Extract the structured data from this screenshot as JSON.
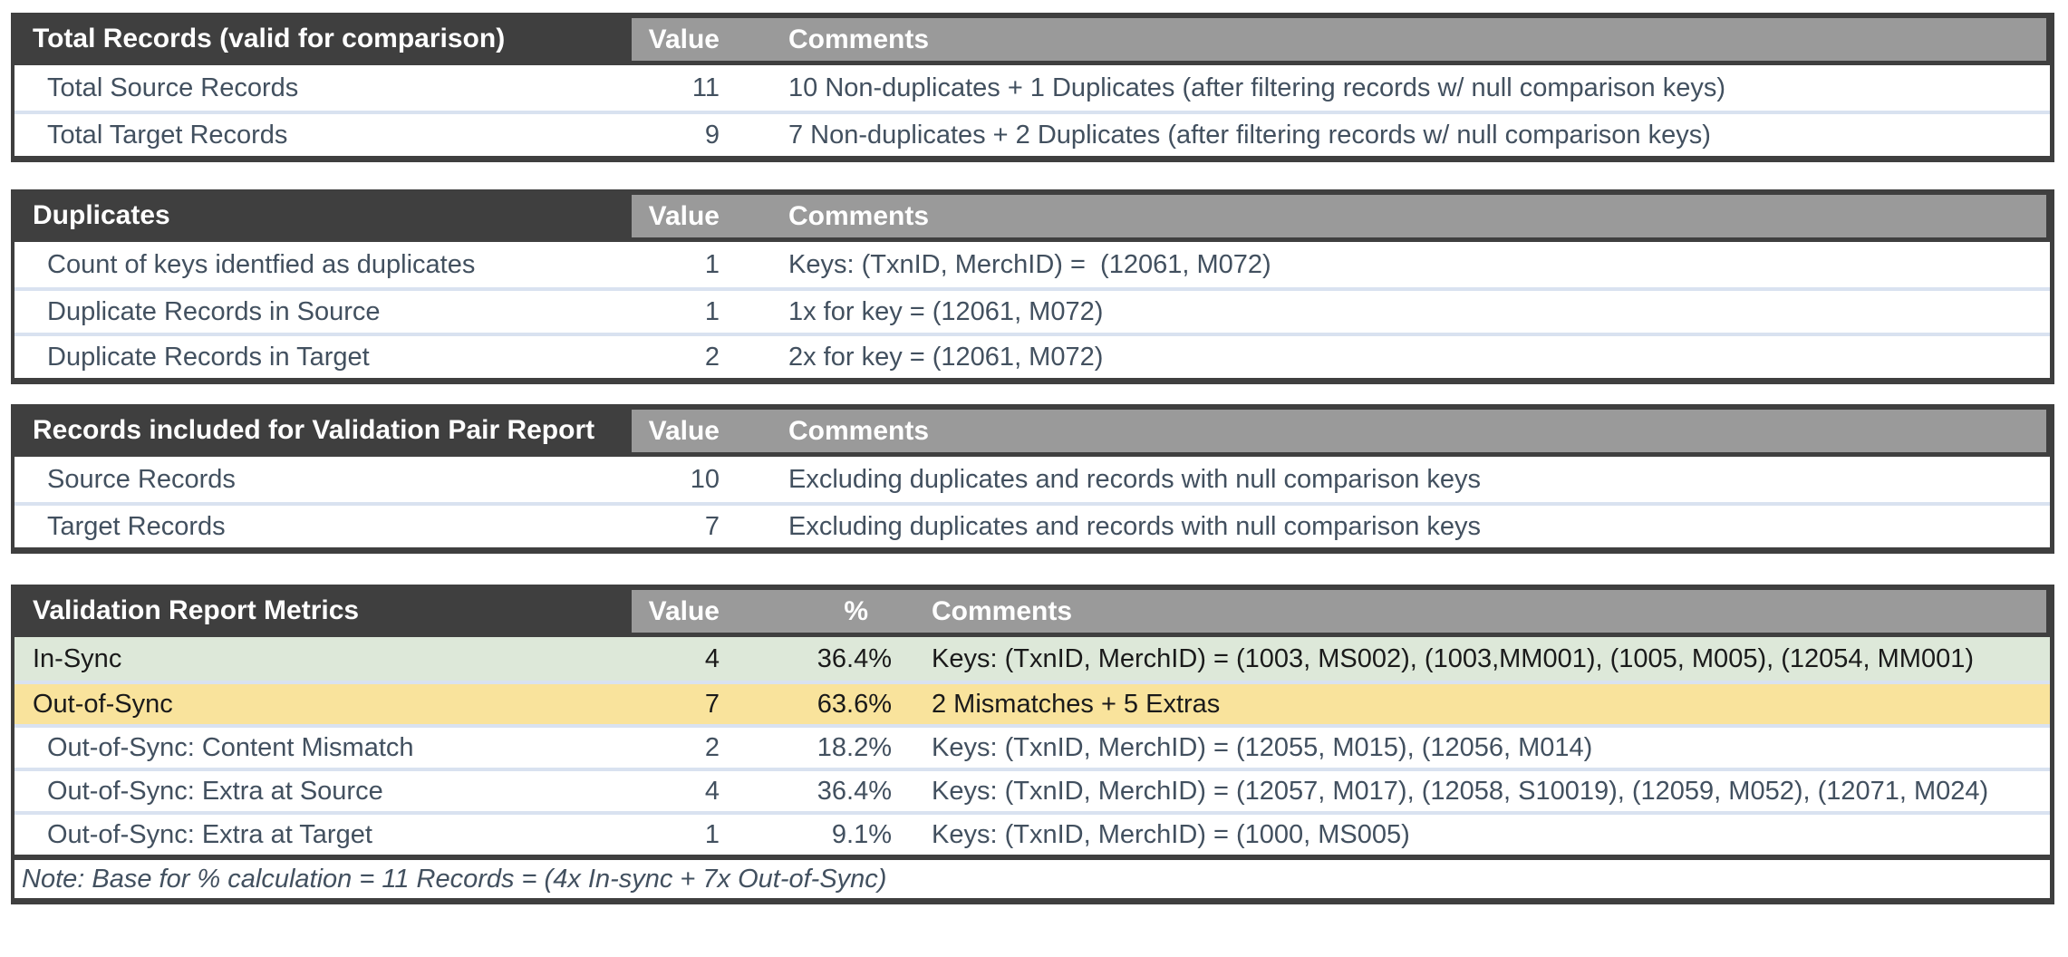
{
  "colors": {
    "header_dark": "#3f3f3f",
    "header_gray": "#9a9a9a",
    "row_separator_blue": "#d9e2f0",
    "in_sync_bg": "#dde8d9",
    "out_of_sync_bg": "#f9e39c",
    "body_text": "#42505f",
    "metric_text": "#1a1a1a",
    "header_text": "#ffffff"
  },
  "tables": [
    {
      "title": "Total Records (valid for comparison)",
      "value_label": "Value",
      "comments_label": "Comments",
      "rows": [
        {
          "label": "Total Source Records",
          "value": "11",
          "comment": "10 Non-duplicates + 1 Duplicates (after filtering records w/ null comparison keys)"
        },
        {
          "label": "Total Target Records",
          "value": "9",
          "comment": "7 Non-duplicates + 2 Duplicates (after filtering records w/ null comparison keys)"
        }
      ]
    },
    {
      "title": "Duplicates",
      "value_label": "Value",
      "comments_label": "Comments",
      "rows": [
        {
          "label": "Count of keys identfied as duplicates",
          "value": "1",
          "comment": "Keys: (TxnID, MerchID) =  (12061, M072)"
        },
        {
          "label": "Duplicate Records in Source",
          "value": "1",
          "comment": "1x for key = (12061, M072)"
        },
        {
          "label": "Duplicate Records in Target",
          "value": "2",
          "comment": "2x for key = (12061, M072)"
        }
      ]
    },
    {
      "title": "Records included for Validation Pair Report",
      "value_label": "Value",
      "comments_label": "Comments",
      "rows": [
        {
          "label": "Source Records",
          "value": "10",
          "comment": "Excluding duplicates and records with null comparison keys"
        },
        {
          "label": "Target Records",
          "value": "7",
          "comment": "Excluding duplicates and records with null comparison keys"
        }
      ]
    },
    {
      "title": "Validation Report Metrics",
      "value_label": "Value",
      "pct_label": "%",
      "comments_label": "Comments",
      "rows": [
        {
          "label": "In-Sync",
          "value": "4",
          "pct": "36.4%",
          "comment": "Keys: (TxnID, MerchID) = (1003, MS002), (1003,MM001), (1005, M005), (12054, MM001)"
        },
        {
          "label": "Out-of-Sync",
          "value": "7",
          "pct": "63.6%",
          "comment": "2 Mismatches + 5 Extras"
        },
        {
          "label": "Out-of-Sync: Content Mismatch",
          "value": "2",
          "pct": "18.2%",
          "comment": "Keys: (TxnID, MerchID) = (12055, M015), (12056, M014)"
        },
        {
          "label": "Out-of-Sync: Extra at Source",
          "value": "4",
          "pct": "36.4%",
          "comment": "Keys: (TxnID, MerchID) = (12057, M017), (12058, S10019), (12059, M052), (12071, M024)"
        },
        {
          "label": "Out-of-Sync: Extra at Target",
          "value": "1",
          "pct": "9.1%",
          "comment": "Keys: (TxnID, MerchID) = (1000, MS005)"
        }
      ],
      "note": "Note: Base for % calculation = 11 Records = (4x In-sync + 7x Out-of-Sync)"
    }
  ]
}
